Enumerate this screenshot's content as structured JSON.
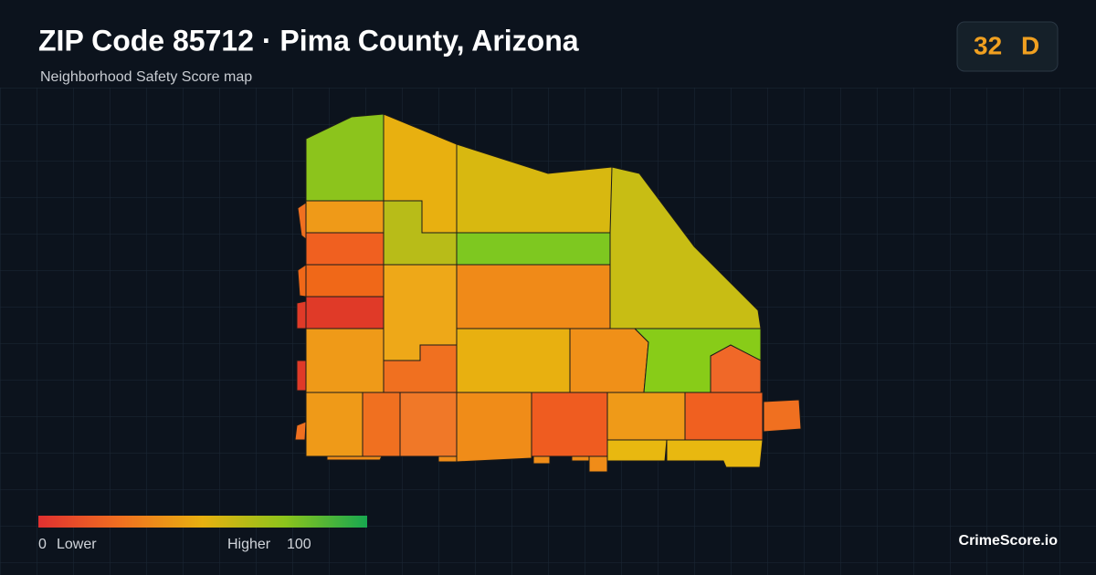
{
  "header": {
    "title": "ZIP Code 85712 · Pima County, Arizona",
    "subtitle": "Neighborhood Safety Score map"
  },
  "badge": {
    "score": 32,
    "grade": "D"
  },
  "legend": {
    "min": 0,
    "min_label": "Lower",
    "max_label": "Higher",
    "max": 100
  },
  "brand": "CrimeScore.io"
}
